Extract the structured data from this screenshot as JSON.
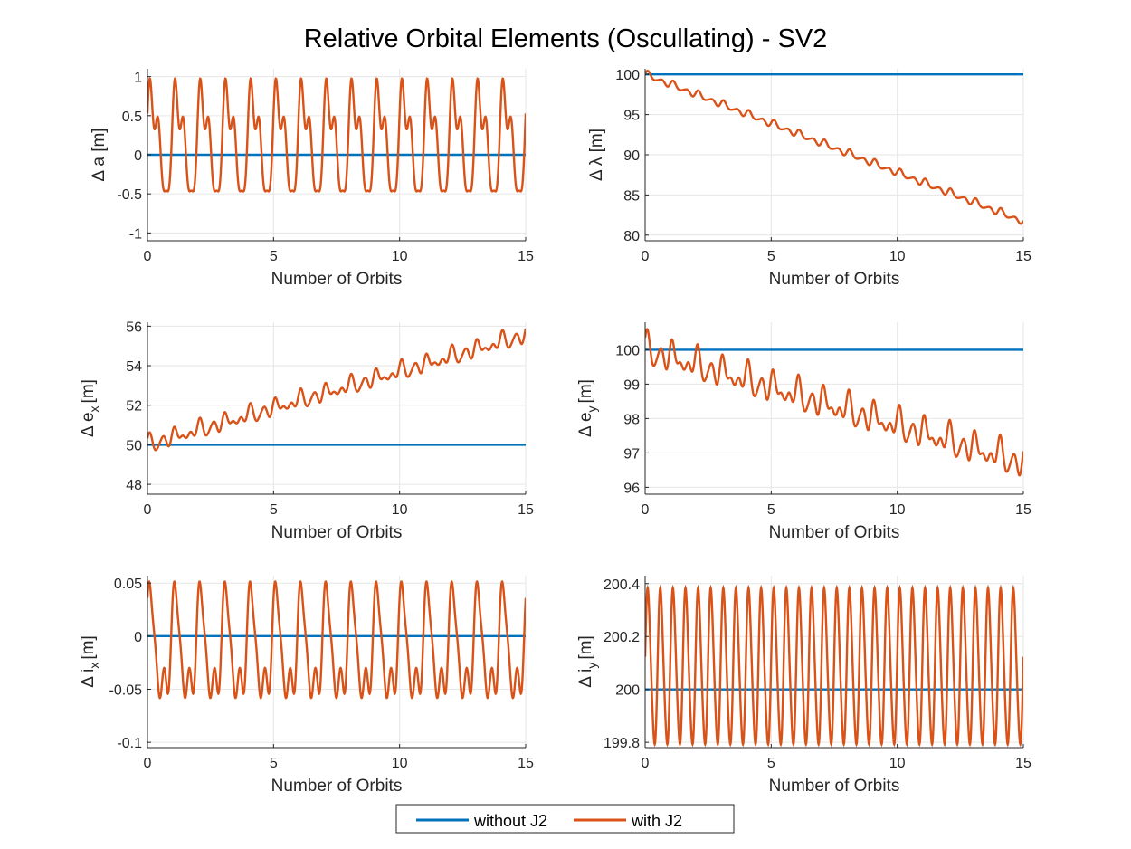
{
  "figure": {
    "title": "Relative Orbital Elements (Oscullating) - SV2",
    "colors": {
      "without": "#0072BD",
      "with": "#D95319",
      "grid": "#e6e6e6",
      "axis": "#262626"
    }
  },
  "legend": {
    "items": [
      {
        "label": "without J2",
        "color": "#0072BD"
      },
      {
        "label": "with J2",
        "color": "#D95319"
      }
    ]
  },
  "chart_data": [
    {
      "id": "da",
      "type": "line",
      "title": "",
      "xlabel": "Number of Orbits",
      "ylabel_main": "Δ a [m]",
      "ylabel_sub": "",
      "xlim": [
        0,
        15
      ],
      "ylim": [
        -1.1,
        1.1
      ],
      "xticks": [
        0,
        5,
        10,
        15
      ],
      "xtick_labels": [
        "0",
        "5",
        "10",
        "15"
      ],
      "yticks": [
        -1,
        -0.5,
        0,
        0.5,
        1
      ],
      "ytick_labels": [
        "-1",
        "-0.5",
        "0",
        "0.5",
        "1"
      ],
      "series": [
        {
          "name": "without J2",
          "constant": 0
        },
        {
          "name": "with J2",
          "model": "osc_a",
          "start": 0,
          "drift": 0,
          "amp_a": 0.62,
          "amp_b": 0.22,
          "amp_c": 0.18,
          "offset": 0.15
        }
      ]
    },
    {
      "id": "dlambda",
      "type": "line",
      "title": "",
      "xlabel": "Number of Orbits",
      "ylabel_main": "Δ λ [m]",
      "ylabel_sub": "",
      "xlim": [
        0,
        15
      ],
      "ylim": [
        79.3,
        100.7
      ],
      "xticks": [
        0,
        5,
        10,
        15
      ],
      "xtick_labels": [
        "0",
        "5",
        "10",
        "15"
      ],
      "yticks": [
        80,
        85,
        90,
        95,
        100
      ],
      "ytick_labels": [
        "80",
        "85",
        "90",
        "95",
        "100"
      ],
      "series": [
        {
          "name": "without J2",
          "constant": 100
        },
        {
          "name": "with J2",
          "model": "drift_small",
          "start": 100,
          "drift": -1.22,
          "amp_a": 0.35,
          "amp_b": 0.15,
          "amp_c": 0.1,
          "offset": 0
        }
      ]
    },
    {
      "id": "dex",
      "type": "line",
      "title": "",
      "xlabel": "Number of Orbits",
      "ylabel_main": "Δ e",
      "ylabel_sub": "x",
      "xlim": [
        0,
        15
      ],
      "ylim": [
        47.5,
        56.2
      ],
      "xticks": [
        0,
        5,
        10,
        15
      ],
      "xtick_labels": [
        "0",
        "5",
        "10",
        "15"
      ],
      "yticks": [
        48,
        50,
        52,
        54,
        56
      ],
      "ytick_labels": [
        "48",
        "50",
        "52",
        "54",
        "56"
      ],
      "series": [
        {
          "name": "without J2",
          "constant": 50
        },
        {
          "name": "with J2",
          "model": "drift_osc",
          "start": 50,
          "drift": 0.37,
          "amp_a": 0.45,
          "amp_b": 0.18,
          "amp_c": 0.12,
          "offset": 0
        }
      ]
    },
    {
      "id": "dey",
      "type": "line",
      "title": "",
      "xlabel": "Number of Orbits",
      "ylabel_main": "Δ e",
      "ylabel_sub": "y",
      "xlim": [
        0,
        15
      ],
      "ylim": [
        95.8,
        100.8
      ],
      "xticks": [
        0,
        5,
        10,
        15
      ],
      "xtick_labels": [
        "0",
        "5",
        "10",
        "15"
      ],
      "yticks": [
        96,
        97,
        98,
        99,
        100
      ],
      "ytick_labels": [
        "96",
        "97",
        "98",
        "99",
        "100"
      ],
      "series": [
        {
          "name": "without J2",
          "constant": 100
        },
        {
          "name": "with J2",
          "model": "drift_osc",
          "start": 100,
          "drift": -0.22,
          "amp_a": 0.45,
          "amp_b": 0.2,
          "amp_c": 0.12,
          "offset": 0
        }
      ]
    },
    {
      "id": "dix",
      "type": "line",
      "title": "",
      "xlabel": "Number of Orbits",
      "ylabel_main": "Δ i",
      "ylabel_sub": "x",
      "xlim": [
        0,
        15
      ],
      "ylim": [
        -0.105,
        0.057
      ],
      "xticks": [
        0,
        5,
        10,
        15
      ],
      "xtick_labels": [
        "0",
        "5",
        "10",
        "15"
      ],
      "yticks": [
        -0.1,
        -0.05,
        0,
        0.05
      ],
      "ytick_labels": [
        "-0.1",
        "-0.05",
        "0",
        "0.05"
      ],
      "series": [
        {
          "name": "without J2",
          "constant": 0
        },
        {
          "name": "with J2",
          "model": "osc_i",
          "start": 0,
          "drift": 0,
          "amp_a": 0.045,
          "amp_b": 0.02,
          "amp_c": 0.012,
          "offset": -0.015
        }
      ]
    },
    {
      "id": "diy",
      "type": "line",
      "title": "",
      "xlabel": "Number of Orbits",
      "ylabel_main": "Δ i",
      "ylabel_sub": "y",
      "xlim": [
        0,
        15
      ],
      "ylim": [
        199.78,
        200.43
      ],
      "xticks": [
        0,
        5,
        10,
        15
      ],
      "xtick_labels": [
        "0",
        "5",
        "10",
        "15"
      ],
      "yticks": [
        199.8,
        200,
        200.2,
        200.4
      ],
      "ytick_labels": [
        "199.8",
        "200",
        "200.2",
        "200.4"
      ],
      "series": [
        {
          "name": "without J2",
          "constant": 200
        },
        {
          "name": "with J2",
          "model": "osc_iy",
          "start": 200,
          "drift": 0,
          "amp_a": 0.29,
          "amp_b": 0.03,
          "amp_c": 0,
          "offset": 0.08
        }
      ]
    }
  ]
}
